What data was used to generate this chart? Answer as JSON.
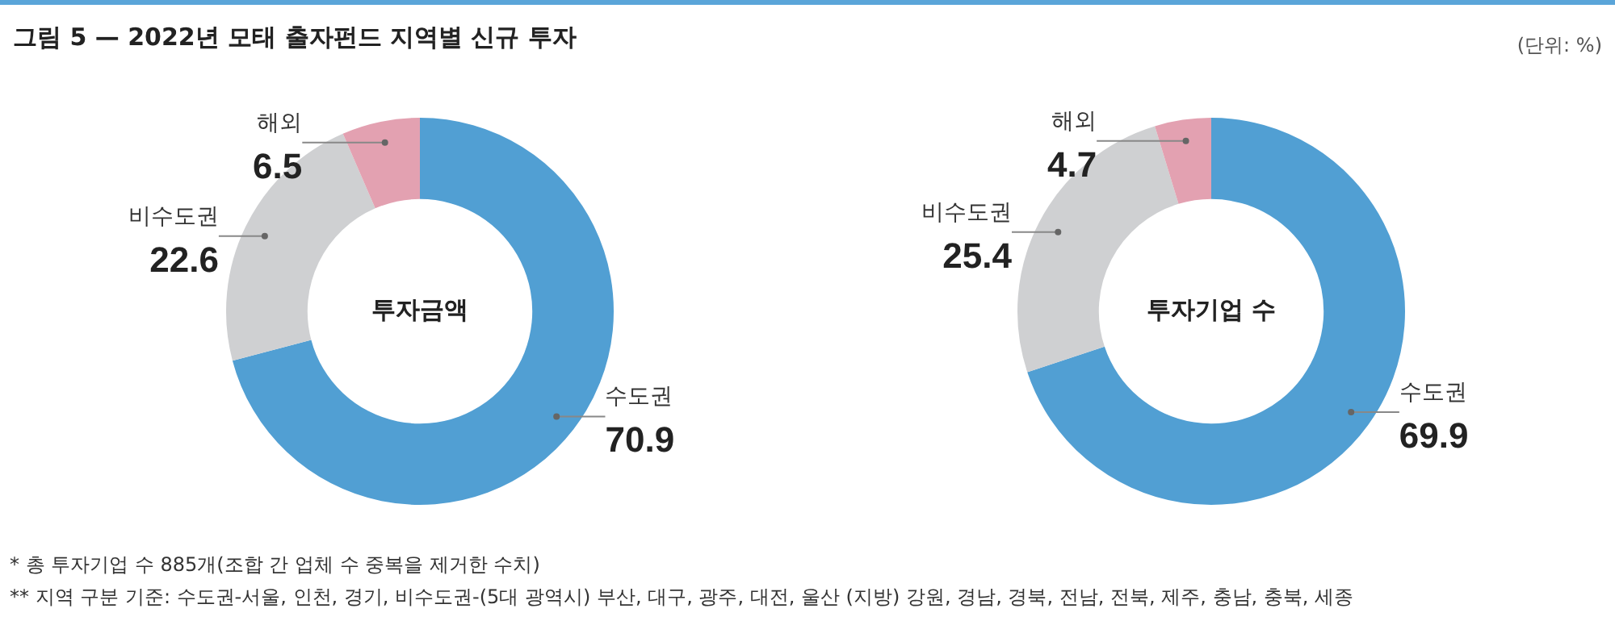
{
  "chart_data": [
    {
      "type": "donut",
      "title": "그림 5 — 2022년 모태 출자펀드 지역별 신규 투자",
      "subtitle": "투자금액",
      "categories": [
        "수도권",
        "비수도권",
        "해외"
      ],
      "values": [
        70.9,
        22.6,
        6.5
      ],
      "colors": [
        "#519fd3",
        "#cfd0d2",
        "#e3a1b1"
      ],
      "data_labels": true,
      "annotations": [
        "(단위: %)",
        "*  총 투자기업 수 885개(조합 간 업체 수 중복을 제거한 수치)",
        "** 지역 구분 기준: 수도권-서울, 인천, 경기, 비수도권-(5대 광역시) 부산, 대구, 광주, 대전, 울산 (지방) 강원, 경남, 경북, 전남, 전북, 제주, 충남, 충북, 세종"
      ]
    },
    {
      "type": "donut",
      "subtitle": "투자기업 수",
      "categories": [
        "수도권",
        "비수도권",
        "해외"
      ],
      "values": [
        69.9,
        25.4,
        4.7
      ],
      "colors": [
        "#519fd3",
        "#cfd0d2",
        "#e3a1b1"
      ],
      "data_labels": true
    }
  ]
}
